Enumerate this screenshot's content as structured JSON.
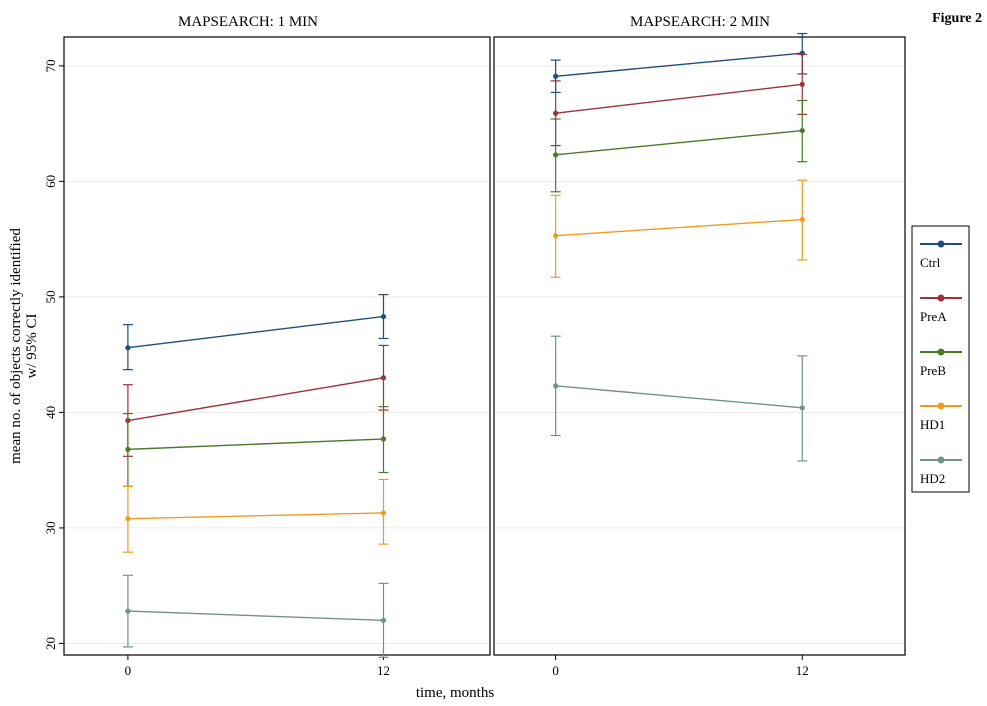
{
  "figure_label": "Figure 2",
  "chart_data": {
    "type": "line",
    "ylabel_line1": "mean no. of objects correctly identified",
    "ylabel_line2": "w/ 95% CI",
    "xlabel": "time, months",
    "x": [
      0,
      12
    ],
    "x_tick_labels": [
      "0",
      "12"
    ],
    "xlim": [
      -3,
      17
    ],
    "ylim": [
      19,
      72.5
    ],
    "y_ticks": [
      20,
      30,
      40,
      50,
      60,
      70
    ],
    "grid": true,
    "legend_position": "right",
    "legend": [
      "Ctrl",
      "PreA",
      "PreB",
      "HD1",
      "HD2"
    ],
    "colors": {
      "Ctrl": "#1f4e79",
      "PreA": "#a0313b",
      "PreB": "#4a7a28",
      "HD1": "#f39a1e",
      "HD2": "#6f9486"
    },
    "panels": [
      {
        "title": "MAPSEARCH: 1 MIN",
        "series": [
          {
            "name": "Ctrl",
            "values": [
              45.6,
              48.3
            ],
            "lower": [
              43.7,
              46.4
            ],
            "upper": [
              47.6,
              50.2
            ]
          },
          {
            "name": "PreA",
            "values": [
              39.3,
              43.0
            ],
            "lower": [
              36.2,
              40.2
            ],
            "upper": [
              42.4,
              45.8
            ]
          },
          {
            "name": "PreB",
            "values": [
              36.8,
              37.7
            ],
            "lower": [
              33.6,
              34.8
            ],
            "upper": [
              39.9,
              40.5
            ]
          },
          {
            "name": "HD1",
            "values": [
              30.8,
              31.3
            ],
            "lower": [
              27.9,
              28.6
            ],
            "upper": [
              33.6,
              34.2
            ]
          },
          {
            "name": "HD2",
            "values": [
              22.8,
              22.0
            ],
            "lower": [
              19.7,
              18.8
            ],
            "upper": [
              25.9,
              25.2
            ]
          }
        ]
      },
      {
        "title": "MAPSEARCH: 2 MIN",
        "series": [
          {
            "name": "Ctrl",
            "values": [
              69.1,
              71.1
            ],
            "lower": [
              67.7,
              69.3
            ],
            "upper": [
              70.5,
              72.8
            ]
          },
          {
            "name": "PreA",
            "values": [
              65.9,
              68.4
            ],
            "lower": [
              63.1,
              65.8
            ],
            "upper": [
              68.7,
              71.0
            ]
          },
          {
            "name": "PreB",
            "values": [
              62.3,
              64.4
            ],
            "lower": [
              59.1,
              61.7
            ],
            "upper": [
              65.4,
              67.0
            ]
          },
          {
            "name": "HD1",
            "values": [
              55.3,
              56.7
            ],
            "lower": [
              51.7,
              53.2
            ],
            "upper": [
              58.8,
              60.1
            ]
          },
          {
            "name": "HD2",
            "values": [
              42.3,
              40.4
            ],
            "lower": [
              38.0,
              35.8
            ],
            "upper": [
              46.6,
              44.9
            ]
          }
        ]
      }
    ]
  }
}
